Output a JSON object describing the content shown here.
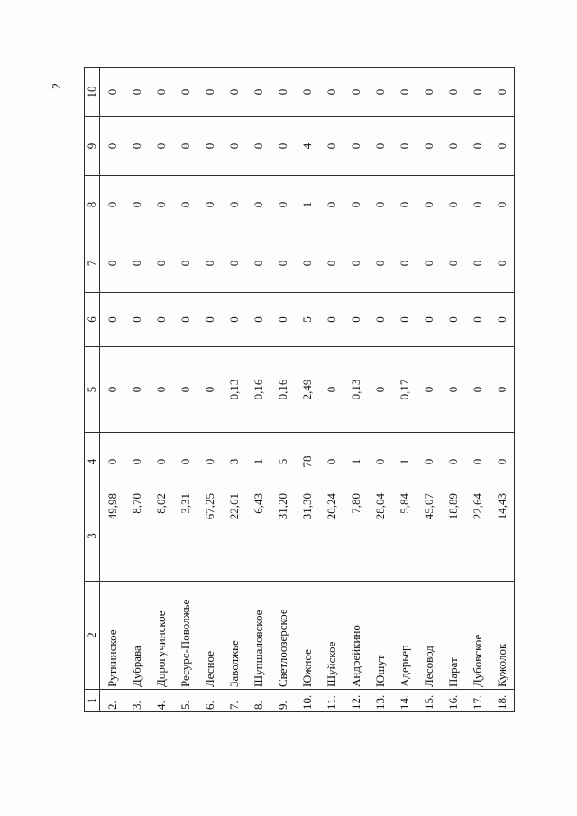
{
  "page": {
    "number": "2"
  },
  "table": {
    "headers": [
      "1",
      "2",
      "3",
      "4",
      "5",
      "6",
      "7",
      "8",
      "9",
      "10"
    ],
    "rows": [
      [
        "2.",
        "Руткинское",
        "49,98",
        "0",
        "0",
        "0",
        "0",
        "0",
        "0",
        "0"
      ],
      [
        "3.",
        "Дубрава",
        "8,70",
        "0",
        "0",
        "0",
        "0",
        "0",
        "0",
        "0"
      ],
      [
        "4.",
        "Дорогучинское",
        "8,02",
        "0",
        "0",
        "0",
        "0",
        "0",
        "0",
        "0"
      ],
      [
        "5.",
        "Ресурс-Поволжье",
        "3,31",
        "0",
        "0",
        "0",
        "0",
        "0",
        "0",
        "0"
      ],
      [
        "6.",
        "Лесное",
        "67,25",
        "0",
        "0",
        "0",
        "0",
        "0",
        "0",
        "0"
      ],
      [
        "7.",
        "Заволжье",
        "22,61",
        "3",
        "0,13",
        "0",
        "0",
        "0",
        "0",
        "0"
      ],
      [
        "8.",
        "Шупшаловское",
        "6,43",
        "1",
        "0,16",
        "0",
        "0",
        "0",
        "0",
        "0"
      ],
      [
        "9.",
        "Светлоозерское",
        "31,20",
        "5",
        "0,16",
        "0",
        "0",
        "0",
        "0",
        "0"
      ],
      [
        "10.",
        "Южное",
        "31,30",
        "78",
        "2,49",
        "5",
        "0",
        "1",
        "4",
        "0"
      ],
      [
        "11.",
        "Шуйское",
        "20,24",
        "0",
        "0",
        "0",
        "0",
        "0",
        "0",
        "0"
      ],
      [
        "12.",
        "Андрейкино",
        "7,80",
        "1",
        "0,13",
        "0",
        "0",
        "0",
        "0",
        "0"
      ],
      [
        "13.",
        "Юшут",
        "28,04",
        "0",
        "0",
        "0",
        "0",
        "0",
        "0",
        "0"
      ],
      [
        "14.",
        "Адерьер",
        "5,84",
        "1",
        "0,17",
        "0",
        "0",
        "0",
        "0",
        "0"
      ],
      [
        "15.",
        "Лесовод",
        "45,07",
        "0",
        "0",
        "0",
        "0",
        "0",
        "0",
        "0"
      ],
      [
        "16.",
        "Нарат",
        "18,89",
        "0",
        "0",
        "0",
        "0",
        "0",
        "0",
        "0"
      ],
      [
        "17.",
        "Дубовское",
        "22,64",
        "0",
        "0",
        "0",
        "0",
        "0",
        "0",
        "0"
      ],
      [
        "18.",
        "Кужолок",
        "14,43",
        "0",
        "0",
        "0",
        "0",
        "0",
        "0",
        "0"
      ]
    ]
  }
}
